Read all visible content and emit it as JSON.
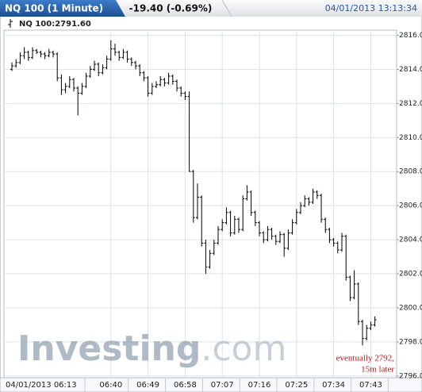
{
  "chart_data": {
    "type": "ohlc",
    "title": "NQ 100 (1 Minute)",
    "change": "-19.40 (-0.69%)",
    "timestamp": "04/01/2013 13:13:34",
    "symbol_label": "NQ 100:2791.60",
    "watermark": [
      "Investing",
      ".com"
    ],
    "annotation": [
      "eventually 2792,",
      "15m later"
    ],
    "color": "#000000",
    "grid": true,
    "ylim": [
      2795.9,
      2816.3
    ],
    "yticks": [
      {
        "value": 2796,
        "label": "2796.00"
      },
      {
        "value": 2798,
        "label": "2798.00"
      },
      {
        "value": 2800,
        "label": "2800.00"
      },
      {
        "value": 2802,
        "label": "2802.00"
      },
      {
        "value": 2804,
        "label": "2804.00"
      },
      {
        "value": 2806,
        "label": "2806.00"
      },
      {
        "value": 2808,
        "label": "2808.00"
      },
      {
        "value": 2810,
        "label": "2810.00"
      },
      {
        "value": 2812,
        "label": "2812.00"
      },
      {
        "value": 2814,
        "label": "2814.00"
      },
      {
        "value": 2816,
        "label": "2816.00"
      }
    ],
    "categories": [
      "04/01/2013 06:13",
      null,
      null,
      null,
      null,
      null,
      null,
      null,
      null,
      null,
      null,
      null,
      null,
      null,
      null,
      null,
      null,
      null,
      null,
      null,
      null,
      null,
      null,
      null,
      "06:40",
      null,
      null,
      null,
      null,
      null,
      null,
      null,
      null,
      "06:49",
      null,
      null,
      null,
      null,
      null,
      null,
      null,
      null,
      "06:58",
      null,
      null,
      null,
      null,
      null,
      null,
      null,
      null,
      "07:07",
      null,
      null,
      null,
      null,
      null,
      null,
      null,
      null,
      "07:16",
      null,
      null,
      null,
      null,
      null,
      null,
      null,
      null,
      "07:25",
      null,
      null,
      null,
      null,
      null,
      null,
      null,
      null,
      "07:34",
      null,
      null,
      null,
      null,
      null,
      null,
      null,
      null,
      "07:43",
      null
    ],
    "open": [
      2814.0,
      2814.2,
      2814.4,
      2814.8,
      2815.0,
      2814.7,
      2815.1,
      2815.0,
      2814.9,
      2814.8,
      2815.0,
      2814.9,
      2813.5,
      2812.8,
      2813.0,
      2813.4,
      2812.9,
      2812.6,
      2813.0,
      2813.6,
      2814.0,
      2814.3,
      2813.8,
      2814.1,
      2814.6,
      2815.2,
      2815.0,
      2814.7,
      2815.0,
      2814.6,
      2814.4,
      2814.2,
      2813.8,
      2813.5,
      2812.6,
      2813.0,
      2813.1,
      2813.4,
      2813.2,
      2813.6,
      2813.3,
      2812.9,
      2812.6,
      2812.4,
      2808.0,
      2805.3,
      2806.5,
      2803.8,
      2802.4,
      2803.2,
      2803.8,
      2804.6,
      2805.0,
      2805.6,
      2804.4,
      2805.2,
      2804.6,
      2806.4,
      2806.8,
      2805.6,
      2805.0,
      2804.4,
      2804.0,
      2804.6,
      2804.2,
      2803.9,
      2804.3,
      2803.5,
      2804.4,
      2805.0,
      2805.6,
      2806.0,
      2806.4,
      2806.2,
      2806.8,
      2806.6,
      2805.2,
      2804.6,
      2804.0,
      2803.8,
      2803.4,
      2804.2,
      2801.8,
      2800.6,
      2801.4,
      2799.2,
      2798.2,
      2798.8,
      2799.0
    ],
    "high": [
      2814.4,
      2814.6,
      2815.0,
      2815.3,
      2815.1,
      2815.3,
      2815.2,
      2815.1,
      2815.0,
      2815.2,
      2815.1,
      2815.0,
      2813.7,
      2813.2,
      2813.6,
      2813.5,
      2813.0,
      2813.2,
      2813.8,
      2814.2,
      2814.5,
      2814.4,
      2814.3,
      2814.8,
      2815.7,
      2815.5,
      2815.1,
      2815.2,
      2815.1,
      2814.7,
      2814.5,
      2814.3,
      2813.9,
      2813.6,
      2813.2,
      2813.3,
      2813.6,
      2813.5,
      2813.8,
      2813.7,
      2813.4,
      2813.0,
      2812.7,
      2812.7,
      2808.1,
      2807.3,
      2806.6,
      2804.0,
      2803.4,
      2804.0,
      2804.8,
      2805.2,
      2805.9,
      2805.7,
      2805.4,
      2805.3,
      2806.6,
      2807.2,
      2806.9,
      2805.7,
      2805.1,
      2804.5,
      2804.8,
      2804.7,
      2804.3,
      2804.5,
      2804.4,
      2804.6,
      2805.2,
      2805.8,
      2806.2,
      2806.6,
      2806.5,
      2807.0,
      2806.9,
      2806.7,
      2805.3,
      2804.7,
      2804.1,
      2803.9,
      2804.4,
      2804.3,
      2801.9,
      2802.2,
      2801.5,
      2799.3,
      2799.0,
      2799.2,
      2799.5
    ],
    "low": [
      2813.9,
      2814.1,
      2814.3,
      2814.6,
      2814.5,
      2814.6,
      2814.9,
      2814.7,
      2814.6,
      2814.7,
      2814.7,
      2813.3,
      2812.5,
      2812.6,
      2812.9,
      2812.7,
      2811.3,
      2812.5,
      2812.9,
      2813.5,
      2813.9,
      2813.6,
      2813.7,
      2814.0,
      2814.5,
      2814.8,
      2814.5,
      2814.6,
      2814.4,
      2814.2,
      2814.0,
      2813.6,
      2813.3,
      2812.4,
      2812.5,
      2812.9,
      2813.0,
      2813.0,
      2813.1,
      2813.1,
      2812.7,
      2812.4,
      2812.2,
      2808.0,
      2805.0,
      2805.2,
      2803.6,
      2802.0,
      2802.3,
      2803.1,
      2803.7,
      2804.5,
      2804.9,
      2804.2,
      2804.3,
      2804.4,
      2804.5,
      2806.3,
      2805.4,
      2804.8,
      2804.2,
      2803.8,
      2803.9,
      2804.0,
      2803.7,
      2803.8,
      2803.0,
      2803.4,
      2804.3,
      2804.9,
      2805.5,
      2805.9,
      2806.0,
      2806.1,
      2806.4,
      2805.0,
      2804.4,
      2803.8,
      2803.6,
      2803.2,
      2803.3,
      2801.6,
      2800.4,
      2800.5,
      2799.0,
      2797.8,
      2798.1,
      2798.7,
      2798.9
    ],
    "close": [
      2814.2,
      2814.4,
      2814.8,
      2815.0,
      2814.7,
      2815.1,
      2815.0,
      2814.9,
      2814.8,
      2815.0,
      2814.9,
      2813.5,
      2812.8,
      2813.0,
      2813.4,
      2812.9,
      2812.6,
      2813.0,
      2813.6,
      2814.0,
      2814.3,
      2813.8,
      2814.1,
      2814.6,
      2815.2,
      2815.0,
      2814.7,
      2815.0,
      2814.6,
      2814.4,
      2814.2,
      2813.8,
      2813.5,
      2812.6,
      2813.0,
      2813.1,
      2813.4,
      2813.2,
      2813.6,
      2813.3,
      2812.9,
      2812.6,
      2812.4,
      2808.0,
      2805.3,
      2806.5,
      2803.8,
      2802.4,
      2803.2,
      2803.8,
      2804.6,
      2805.0,
      2805.6,
      2804.4,
      2805.2,
      2804.6,
      2806.4,
      2806.8,
      2805.6,
      2805.0,
      2804.4,
      2804.0,
      2804.6,
      2804.2,
      2803.9,
      2804.3,
      2803.5,
      2804.4,
      2805.0,
      2805.6,
      2806.0,
      2806.4,
      2806.2,
      2806.8,
      2806.6,
      2805.2,
      2804.6,
      2804.0,
      2803.8,
      2803.4,
      2804.2,
      2801.8,
      2800.6,
      2801.4,
      2799.2,
      2798.2,
      2798.8,
      2799.0,
      2799.3
    ]
  }
}
